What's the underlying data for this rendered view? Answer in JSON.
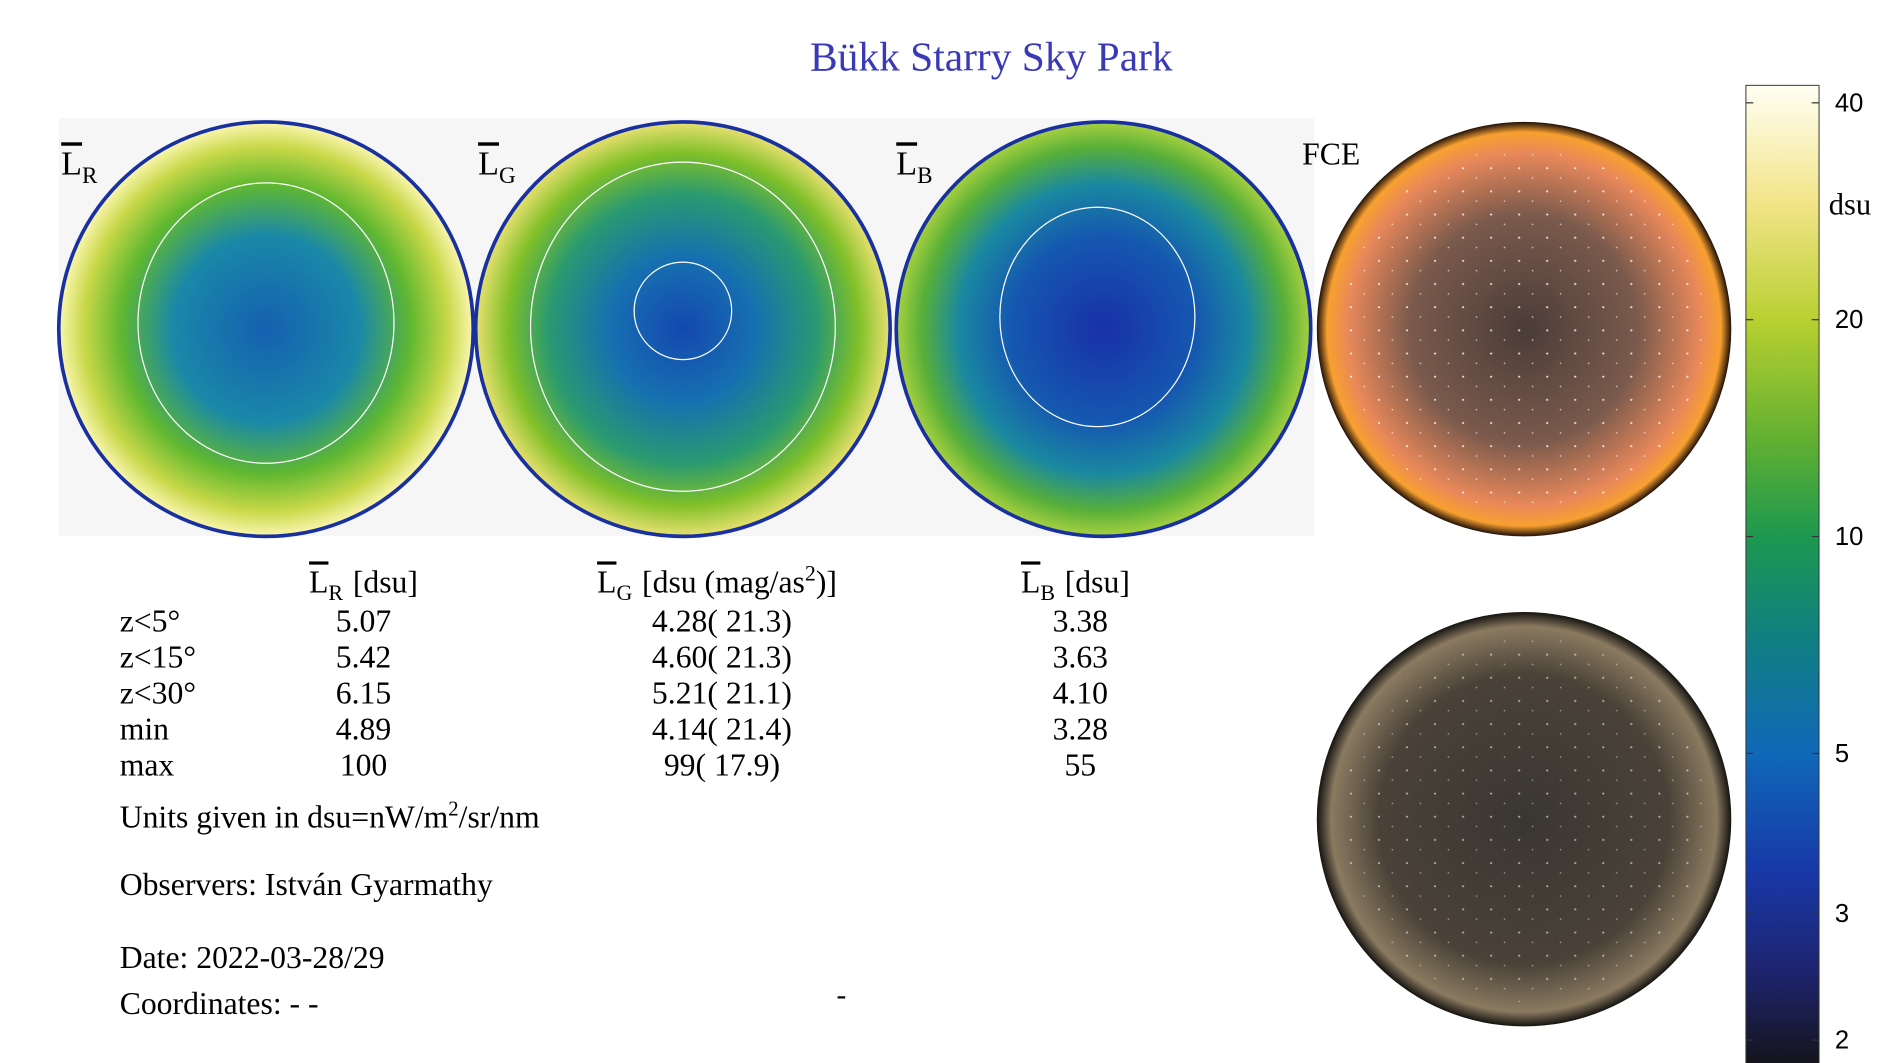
{
  "title": "Bükk Starry Sky Park",
  "map_labels": [
    {
      "symbol": "L",
      "sub": "R"
    },
    {
      "symbol": "L",
      "sub": "G"
    },
    {
      "symbol": "L",
      "sub": "B"
    }
  ],
  "photo_label": "FCE",
  "table": {
    "headers": [
      {
        "symbol": "L",
        "sub": "R",
        "unit": "[dsu]"
      },
      {
        "symbol": "L",
        "sub": "G",
        "unit": "[dsu (mag/as",
        "sup": "2",
        "unit_end": ")]"
      },
      {
        "symbol": "L",
        "sub": "B",
        "unit": "[dsu]"
      }
    ],
    "rows": [
      [
        "z<5°",
        "5.07",
        "4.28( 21.3)",
        "3.38"
      ],
      [
        "z<15°",
        "5.42",
        "4.60( 21.3)",
        "3.63"
      ],
      [
        "z<30°",
        "6.15",
        "5.21( 21.1)",
        "4.10"
      ],
      [
        "min",
        "4.89",
        "4.14( 21.4)",
        "3.28"
      ],
      [
        "max",
        "100",
        "99( 17.9)",
        "55"
      ]
    ]
  },
  "units_note": {
    "text": "Units given in dsu=nW/m",
    "sup": "2",
    "text_end": "/sr/nm"
  },
  "observers": "Observers: István Gyarmathy",
  "date": "Date: 2022-03-28/29",
  "coordinates": "Coordinates: - -",
  "mark": "-",
  "colorbar": {
    "label": "dsu",
    "lim": [
      1.83,
      42.3
    ],
    "ticks": [
      2,
      3,
      5,
      10,
      20,
      40
    ],
    "log": true
  }
}
